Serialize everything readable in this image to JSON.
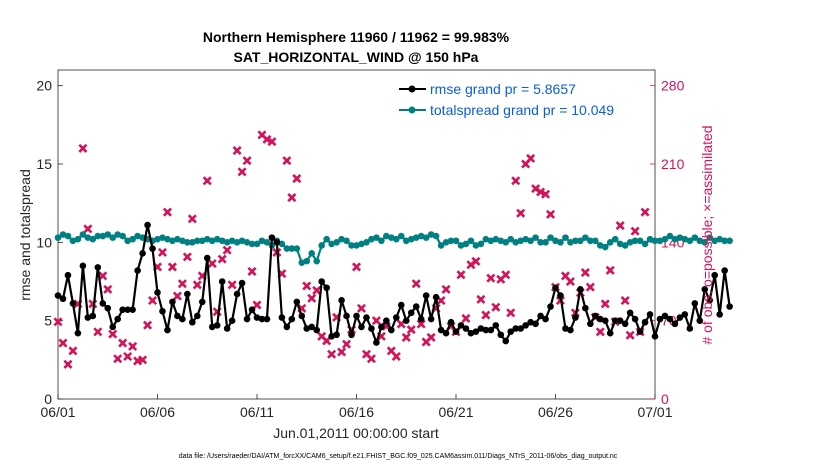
{
  "chart_data": {
    "type": "line",
    "title": "Northern Hemisphere 11960 / 11962 = 99.983%",
    "subtitle": "SAT_HORIZONTAL_WIND @ 150 hPa",
    "xlabel": "Jun.01,2011 00:00:00 start",
    "ylabel": "rmse and totalspread",
    "ylabel_right": "# of obs: o=possible; ×=assimilated",
    "footnote": "data file: /Users/raeder/DAI/ATM_forcXX/CAM6_setup/f.e21.FHIST_BGC.f09_025.CAM6assim.011/Diags_NTrS_2011-06/obs_diag_output.nc",
    "ylim": [
      0,
      21
    ],
    "ylim_right": [
      0,
      294
    ],
    "xlim": [
      0,
      30
    ],
    "yticks": [
      "0",
      "5",
      "10",
      "15",
      "20"
    ],
    "yticks_right": [
      "0",
      "70",
      "140",
      "210",
      "280"
    ],
    "xtick_labels": [
      "06/01",
      "06/06",
      "06/11",
      "06/16",
      "06/21",
      "06/26",
      "07/01"
    ],
    "colors": {
      "rmse": "#000000",
      "spread": "#008080",
      "obs": "#d4145a",
      "legend_text": "#0a5fd6"
    },
    "legend": [
      "rmse grand pr = 5.8657",
      "totalspread grand pr = 10.049"
    ],
    "series": [
      {
        "name": "rmse",
        "step": 0.25,
        "values": [
          6.6,
          6.4,
          7.9,
          6.1,
          4.2,
          8.5,
          5.2,
          5.3,
          8.4,
          6.1,
          5.8,
          4.6,
          5.1,
          5.7,
          5.7,
          5.7,
          8.2,
          9.3,
          11.1,
          9.6,
          6.8,
          5.6,
          4.4,
          6.2,
          5.3,
          5.1,
          6.7,
          4.9,
          5.3,
          6.2,
          9.0,
          4.6,
          4.7,
          7.5,
          4.5,
          5.0,
          6.7,
          7.4,
          5.1,
          5.7,
          5.2,
          5.1,
          5.1,
          10.3,
          10.0,
          5.2,
          4.6,
          5.1,
          6.2,
          5.3,
          4.5,
          4.6,
          4.4,
          7.5,
          7.1,
          4.0,
          4.1,
          6.3,
          5.3,
          4.1,
          5.3,
          4.6,
          5.2,
          4.5,
          3.6,
          4.6,
          5.0,
          4.4,
          5.2,
          6.0,
          5.0,
          5.5,
          5.9,
          5.1,
          6.6,
          5.1,
          6.5,
          4.4,
          4.2,
          4.9,
          4.3,
          4.7,
          4.5,
          4.2,
          4.3,
          4.5,
          4.4,
          4.4,
          4.7,
          4.1,
          3.7,
          4.3,
          4.5,
          4.5,
          4.7,
          4.9,
          4.8,
          5.3,
          5.1,
          5.9,
          7.1,
          6.6,
          4.5,
          4.4,
          5.2,
          7.0,
          5.8,
          4.8,
          5.3,
          5.1,
          5.0,
          4.2,
          5.0,
          5.0,
          4.8,
          5.5,
          5.1,
          4.3,
          4.9,
          5.4,
          4.0,
          5.1,
          5.3,
          5.1,
          4.8,
          5.2,
          5.4,
          4.5,
          6.1,
          5.0,
          7.0,
          6.3,
          7.9,
          5.4,
          8.2,
          5.9
        ],
        "marker": "circle"
      },
      {
        "name": "totalspread",
        "step": 0.25,
        "values": [
          10.3,
          10.5,
          10.4,
          10.1,
          10.2,
          10.5,
          10.3,
          10.2,
          10.4,
          10.4,
          10.5,
          10.3,
          10.5,
          10.4,
          10.1,
          10.2,
          10.4,
          10.3,
          10.2,
          10.1,
          10.2,
          10.3,
          10.2,
          10.1,
          10.2,
          10.1,
          10.0,
          10.0,
          10.1,
          10.1,
          10.2,
          10.1,
          10.2,
          10.1,
          10.0,
          10.1,
          10.0,
          10.1,
          10.0,
          9.9,
          9.9,
          10.1,
          10.0,
          9.8,
          10.1,
          9.9,
          9.6,
          9.6,
          9.6,
          8.7,
          8.8,
          9.3,
          8.8,
          9.8,
          10.2,
          9.9,
          10.0,
          10.2,
          10.1,
          9.8,
          9.8,
          9.9,
          10.0,
          10.2,
          10.3,
          10.1,
          10.4,
          10.3,
          10.2,
          10.4,
          10.1,
          10.2,
          10.3,
          10.4,
          10.3,
          10.5,
          10.4,
          9.8,
          10.0,
          10.1,
          10.1,
          9.8,
          9.9,
          10.1,
          9.8,
          9.9,
          10.2,
          10.1,
          10.2,
          10.1,
          10.0,
          10.2,
          10.0,
          10.1,
          10.2,
          10.1,
          10.3,
          10.0,
          10.0,
          10.3,
          10.1,
          10.0,
          10.3,
          10.0,
          10.1,
          10.1,
          10.3,
          10.1,
          10.1,
          9.8,
          9.7,
          10.0,
          10.2,
          9.9,
          9.8,
          10.0,
          10.1,
          10.1,
          9.9,
          10.2,
          10.1,
          10.1,
          10.2,
          10.4,
          10.2,
          10.3,
          10.2,
          10.1,
          10.3,
          10.1,
          10.0,
          10.3,
          10.1,
          10.2,
          10.1,
          10.1
        ],
        "marker": "circle"
      },
      {
        "name": "obs_assimilated",
        "axis": "right",
        "marker": "x",
        "points": [
          [
            0.0,
            69
          ],
          [
            0.25,
            50
          ],
          [
            0.5,
            31
          ],
          [
            0.75,
            43
          ],
          [
            1.0,
            85
          ],
          [
            1.25,
            224
          ],
          [
            1.5,
            152
          ],
          [
            1.75,
            85
          ],
          [
            2.0,
            60
          ],
          [
            2.25,
            110
          ],
          [
            2.5,
            98
          ],
          [
            2.75,
            58
          ],
          [
            3.0,
            36
          ],
          [
            3.25,
            50
          ],
          [
            3.5,
            38
          ],
          [
            3.75,
            47
          ],
          [
            4.0,
            34
          ],
          [
            4.25,
            35
          ],
          [
            4.5,
            66
          ],
          [
            4.75,
            88
          ],
          [
            5.0,
            118
          ],
          [
            5.25,
            131
          ],
          [
            5.5,
            167
          ],
          [
            5.75,
            118
          ],
          [
            6.0,
            92
          ],
          [
            6.25,
            103
          ],
          [
            6.5,
            127
          ],
          [
            6.75,
            161
          ],
          [
            7.0,
            102
          ],
          [
            7.25,
            110
          ],
          [
            7.5,
            195
          ],
          [
            7.75,
            121
          ],
          [
            8.0,
            78
          ],
          [
            8.25,
            125
          ],
          [
            8.5,
            133
          ],
          [
            8.75,
            102
          ],
          [
            9.0,
            222
          ],
          [
            9.25,
            203
          ],
          [
            9.5,
            213
          ],
          [
            9.75,
            114
          ],
          [
            10.0,
            84
          ],
          [
            10.25,
            236
          ],
          [
            10.5,
            232
          ],
          [
            10.75,
            230
          ],
          [
            11.0,
            131
          ],
          [
            11.25,
            112
          ],
          [
            11.5,
            213
          ],
          [
            11.75,
            180
          ],
          [
            12.0,
            197
          ],
          [
            12.25,
            81
          ],
          [
            12.5,
            101
          ],
          [
            12.75,
            90
          ],
          [
            13.0,
            97
          ],
          [
            13.25,
            56
          ],
          [
            13.5,
            52
          ],
          [
            13.75,
            40
          ],
          [
            14.0,
            73
          ],
          [
            14.25,
            42
          ],
          [
            14.5,
            49
          ],
          [
            14.75,
            62
          ],
          [
            15.0,
            118
          ],
          [
            15.25,
            81
          ],
          [
            15.5,
            40
          ],
          [
            15.75,
            36
          ],
          [
            16.0,
            70
          ],
          [
            16.25,
            56
          ],
          [
            16.5,
            65
          ],
          [
            16.75,
            43
          ],
          [
            17.0,
            38
          ],
          [
            17.25,
            67
          ],
          [
            17.5,
            55
          ],
          [
            17.75,
            62
          ],
          [
            18.0,
            103
          ],
          [
            18.25,
            67
          ],
          [
            18.5,
            51
          ],
          [
            18.75,
            55
          ],
          [
            19.0,
            81
          ],
          [
            19.25,
            88
          ],
          [
            19.5,
            98
          ],
          [
            19.75,
            65
          ],
          [
            20.0,
            60
          ],
          [
            20.25,
            111
          ],
          [
            20.5,
            72
          ],
          [
            20.75,
            120
          ],
          [
            21.0,
            123
          ],
          [
            21.25,
            89
          ],
          [
            21.5,
            75
          ],
          [
            21.75,
            108
          ],
          [
            22.0,
            82
          ],
          [
            22.25,
            107
          ],
          [
            22.5,
            111
          ],
          [
            22.75,
            77
          ],
          [
            23.0,
            195
          ],
          [
            23.25,
            166
          ],
          [
            23.5,
            210
          ],
          [
            23.75,
            215
          ],
          [
            24.0,
            188
          ],
          [
            24.25,
            185
          ],
          [
            24.5,
            183
          ],
          [
            24.75,
            165
          ],
          [
            25.0,
            100
          ],
          [
            25.25,
            88
          ],
          [
            25.5,
            110
          ],
          [
            25.75,
            105
          ],
          [
            26.0,
            77
          ],
          [
            26.25,
            95
          ],
          [
            26.5,
            113
          ],
          [
            26.75,
            100
          ],
          [
            27.0,
            73
          ],
          [
            27.25,
            60
          ],
          [
            27.5,
            85
          ],
          [
            27.75,
            115
          ],
          [
            28.0,
            69
          ],
          [
            28.25,
            155
          ],
          [
            28.5,
            88
          ],
          [
            28.75,
            57
          ],
          [
            29.0,
            150
          ],
          [
            29.25,
            60
          ],
          [
            29.5,
            167
          ]
        ]
      }
    ]
  }
}
